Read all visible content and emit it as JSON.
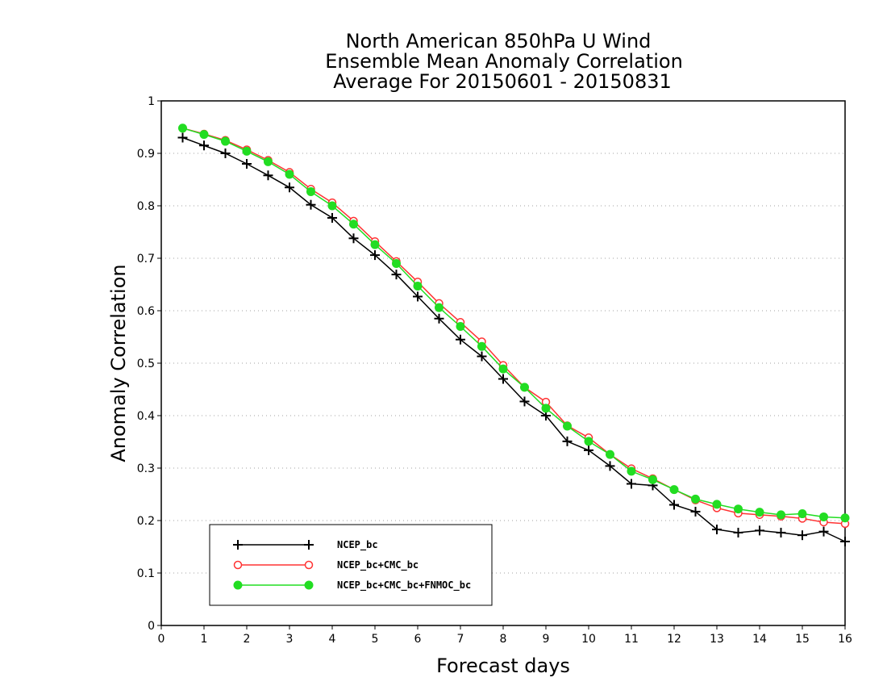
{
  "chart_data": {
    "type": "line",
    "title_lines": [
      "North American 850hPa U Wind",
      "Ensemble Mean Anomaly Correlation",
      "Average For 20150601 - 20150831"
    ],
    "xlabel": "Forecast days",
    "ylabel": "Anomaly Correlation",
    "xlim": [
      0,
      16
    ],
    "ylim": [
      0,
      1
    ],
    "x_ticks": [
      "0",
      "1",
      "2",
      "3",
      "4",
      "5",
      "6",
      "7",
      "8",
      "9",
      "10",
      "11",
      "12",
      "13",
      "14",
      "15",
      "16"
    ],
    "y_ticks": [
      "0",
      "0.1",
      "0.2",
      "0.3",
      "0.4",
      "0.5",
      "0.6",
      "0.7",
      "0.8",
      "0.9",
      "1"
    ],
    "grid": "horizontal dotted",
    "legend_position": "bottom-left",
    "x": [
      0.5,
      1,
      1.5,
      2,
      2.5,
      3,
      3.5,
      4,
      4.5,
      5,
      5.5,
      6,
      6.5,
      7,
      7.5,
      8,
      8.5,
      9,
      9.5,
      10,
      10.5,
      11,
      11.5,
      12,
      12.5,
      13,
      13.5,
      14,
      14.5,
      15,
      15.5,
      16
    ],
    "series": [
      {
        "name": "NCEP_bc",
        "color": "#000000",
        "marker": "plus",
        "values": [
          0.93,
          0.915,
          0.9,
          0.88,
          0.858,
          0.835,
          0.802,
          0.777,
          0.738,
          0.706,
          0.669,
          0.627,
          0.585,
          0.545,
          0.513,
          0.47,
          0.427,
          0.4,
          0.351,
          0.334,
          0.304,
          0.27,
          0.267,
          0.23,
          0.217,
          0.183,
          0.177,
          0.181,
          0.177,
          0.172,
          0.179,
          0.16
        ]
      },
      {
        "name": "NCEP_bc+CMC_bc",
        "color": "#ff3333",
        "marker": "open-circle",
        "values": [
          0.948,
          0.937,
          0.925,
          0.907,
          0.887,
          0.864,
          0.832,
          0.806,
          0.771,
          0.732,
          0.694,
          0.655,
          0.614,
          0.578,
          0.541,
          0.496,
          0.454,
          0.426,
          0.381,
          0.358,
          0.326,
          0.299,
          0.28,
          0.259,
          0.239,
          0.224,
          0.214,
          0.211,
          0.208,
          0.204,
          0.197,
          0.194
        ]
      },
      {
        "name": "NCEP_bc+CMC_bc+FNMOC_bc",
        "color": "#22dd22",
        "marker": "filled-circle",
        "values": [
          0.948,
          0.936,
          0.923,
          0.904,
          0.884,
          0.86,
          0.827,
          0.8,
          0.765,
          0.726,
          0.69,
          0.647,
          0.606,
          0.57,
          0.532,
          0.489,
          0.454,
          0.414,
          0.38,
          0.351,
          0.326,
          0.294,
          0.278,
          0.259,
          0.241,
          0.231,
          0.222,
          0.216,
          0.211,
          0.213,
          0.207,
          0.205
        ]
      }
    ]
  }
}
